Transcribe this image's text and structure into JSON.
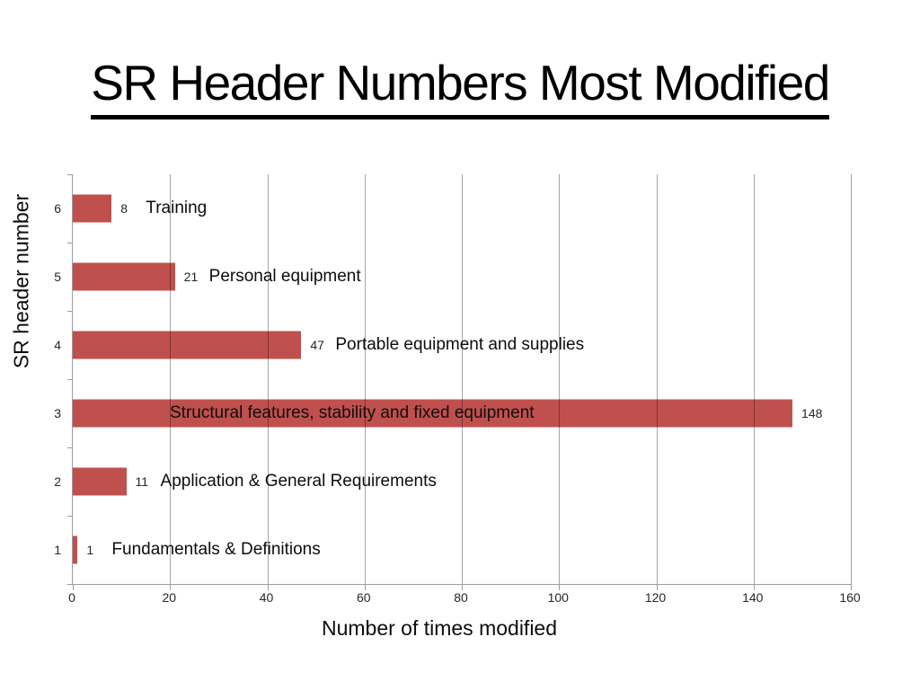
{
  "slide": {
    "title": "SR Header Numbers Most Modified"
  },
  "chart_data": {
    "type": "bar",
    "orientation": "horizontal",
    "xlabel": "Number of times modified",
    "ylabel": "SR header number",
    "xlim": [
      0,
      160
    ],
    "x_ticks": [
      "0",
      "20",
      "40",
      "60",
      "80",
      "100",
      "120",
      "140",
      "160"
    ],
    "grid": "vertical",
    "legend": "none",
    "categories": [
      "6",
      "5",
      "4",
      "3",
      "2",
      "1"
    ],
    "rows": [
      {
        "category": "6",
        "value": 8,
        "value_label": "8",
        "annotation": "Training",
        "label_inside": false
      },
      {
        "category": "5",
        "value": 21,
        "value_label": "21",
        "annotation": "Personal equipment",
        "label_inside": false
      },
      {
        "category": "4",
        "value": 47,
        "value_label": "47",
        "annotation": "Portable equipment and supplies",
        "label_inside": false
      },
      {
        "category": "3",
        "value": 148,
        "value_label": "148",
        "annotation": "Structural features,  stability and fixed equipment",
        "label_inside": true
      },
      {
        "category": "2",
        "value": 11,
        "value_label": "11",
        "annotation": "Application & General Requirements",
        "label_inside": false
      },
      {
        "category": "1",
        "value": 1,
        "value_label": "1",
        "annotation": "Fundamentals & Definitions",
        "label_inside": false
      }
    ],
    "colors": {
      "bar": "#C0504D",
      "grid": "rgba(0,0,0,0.35)",
      "axis": "#9C9C9C",
      "text": "#0D0D0D"
    }
  }
}
